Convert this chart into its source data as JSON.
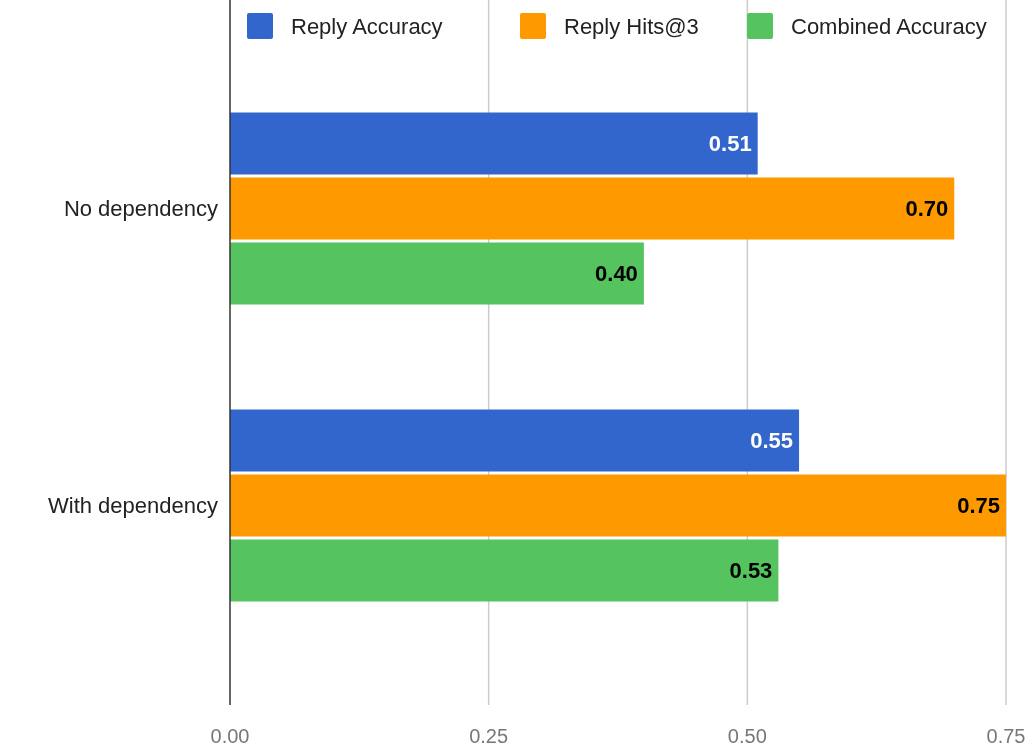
{
  "chart_data": {
    "type": "bar",
    "orientation": "horizontal",
    "categories": [
      "No dependency",
      "With dependency"
    ],
    "series": [
      {
        "name": "Reply Accuracy",
        "color": "#3366cc",
        "values": [
          0.51,
          0.55
        ],
        "value_labels": [
          "0.51",
          "0.55"
        ]
      },
      {
        "name": "Reply Hits@3",
        "color": "#ff9900",
        "values": [
          0.7,
          0.75
        ],
        "value_labels": [
          "0.70",
          "0.75"
        ]
      },
      {
        "name": "Combined Accuracy",
        "color": "#55c35e",
        "values": [
          0.4,
          0.53
        ],
        "value_labels": [
          "0.40",
          "0.53"
        ]
      }
    ],
    "xlim": [
      0,
      0.75
    ],
    "xticks": [
      {
        "value": 0,
        "label": "0.00"
      },
      {
        "value": 0.25,
        "label": "0.25"
      },
      {
        "value": 0.5,
        "label": "0.50"
      },
      {
        "value": 0.75,
        "label": "0.75"
      }
    ],
    "grid": "x",
    "legend": "top"
  }
}
